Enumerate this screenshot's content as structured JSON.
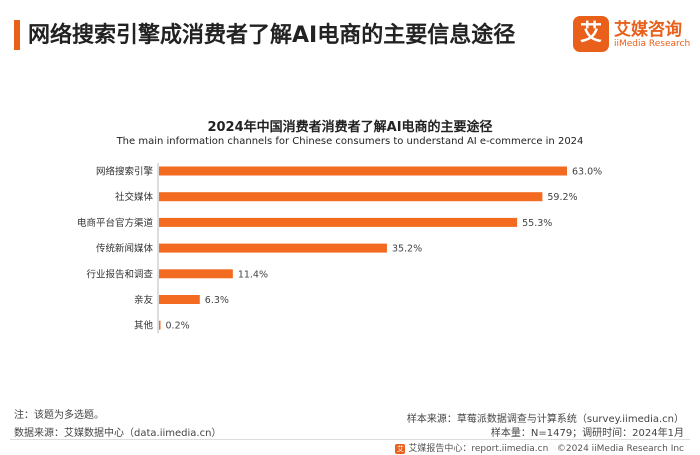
{
  "header": {
    "title": "网络搜索引擎成消费者了解AI电商的主要信息途径",
    "logo_mark": "艾",
    "logo_name": "艾媒咨询",
    "logo_sub": "iiMedia Research"
  },
  "colors": {
    "accent": "#e8601a",
    "bar": "#f26b21"
  },
  "chart_data": {
    "type": "bar",
    "orientation": "horizontal",
    "title": "2024年中国消费者消费者了解AI电商的主要途径",
    "subtitle": "The main information channels for Chinese consumers to understand AI e-commerce in 2024",
    "categories": [
      "网络搜索引擎",
      "社交媒体",
      "电商平台官方渠道",
      "传统新闻媒体",
      "行业报告和调查",
      "亲友",
      "其他"
    ],
    "values": [
      63.0,
      59.2,
      55.3,
      35.2,
      11.4,
      6.3,
      0.2
    ],
    "value_labels": [
      "63.0%",
      "59.2%",
      "55.3%",
      "35.2%",
      "11.4%",
      "6.3%",
      "0.2%"
    ],
    "xlim": [
      0,
      63.0
    ],
    "unit": "%"
  },
  "notes": {
    "note": "注：该题为多选题。",
    "source": "数据来源：艾媒数据中心（data.iimedia.cn）",
    "sample_source": "样本来源：草莓派数据调查与计算系统（survey.iimedia.cn）",
    "sample_size": "样本量：N=1479；调研时间：2024年1月"
  },
  "footer": {
    "icon": "艾",
    "report_center": "艾媒报告中心：report.iimedia.cn",
    "copyright": "©2024  iiMedia Research  Inc"
  }
}
